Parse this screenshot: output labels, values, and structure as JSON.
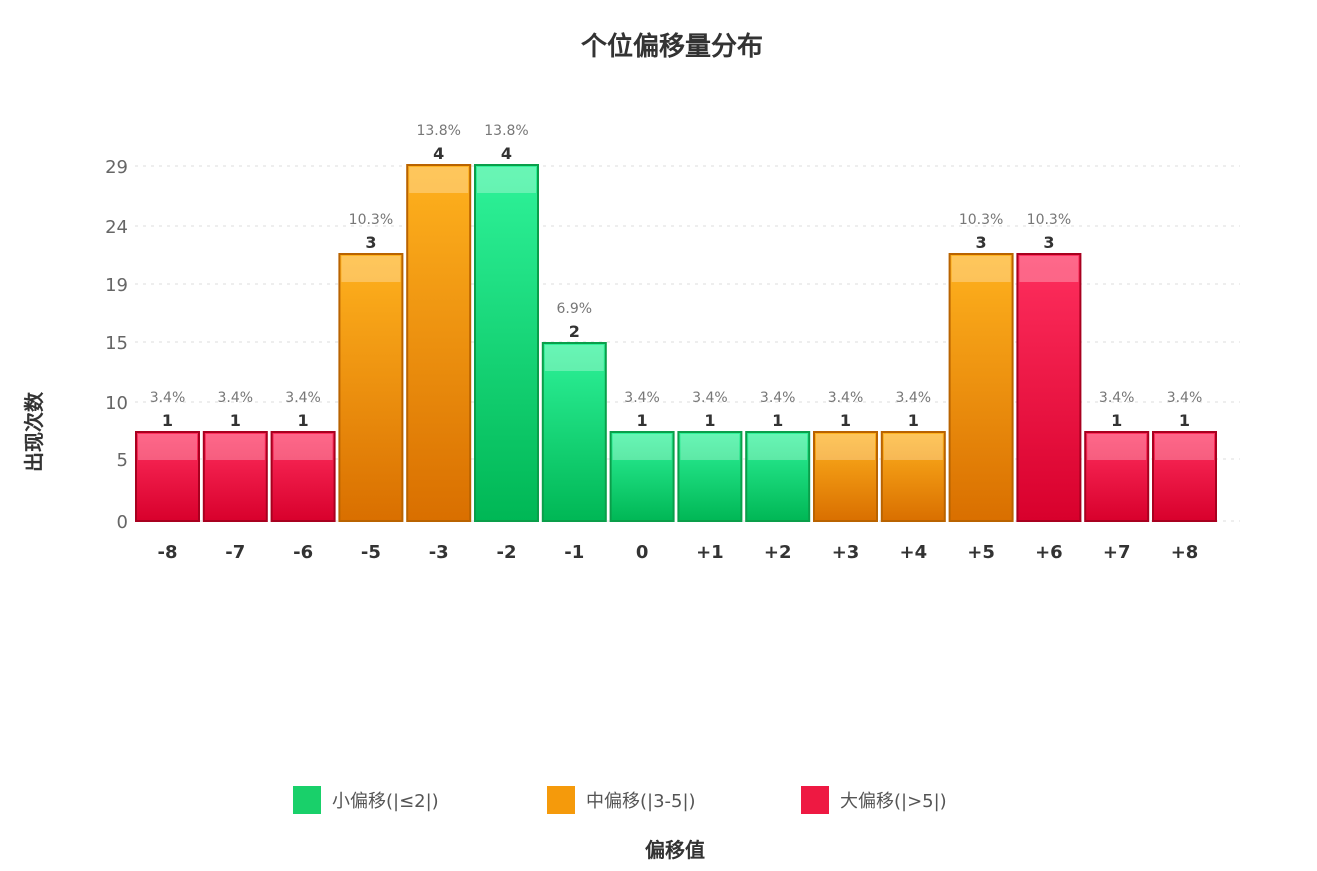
{
  "chart_data": {
    "type": "bar",
    "title": "个位偏移量分布",
    "xlabel": "偏移值",
    "ylabel": "出现次数",
    "categories": [
      "-8",
      "-7",
      "-6",
      "-5",
      "-3",
      "-2",
      "-1",
      "0",
      "+1",
      "+2",
      "+3",
      "+4",
      "+5",
      "+6",
      "+7",
      "+8"
    ],
    "values": [
      1,
      1,
      1,
      3,
      4,
      4,
      2,
      1,
      1,
      1,
      1,
      1,
      3,
      3,
      1,
      1
    ],
    "percent_labels": [
      "3.4%",
      "3.4%",
      "3.4%",
      "10.3%",
      "13.8%",
      "13.8%",
      "6.9%",
      "3.4%",
      "3.4%",
      "3.4%",
      "3.4%",
      "3.4%",
      "10.3%",
      "10.3%",
      "3.4%",
      "3.4%"
    ],
    "bar_groups": [
      "large",
      "large",
      "large",
      "medium",
      "medium",
      "small",
      "small",
      "small",
      "small",
      "small",
      "medium",
      "medium",
      "medium",
      "large",
      "large",
      "large"
    ],
    "yticks": [
      "0",
      "5",
      "10",
      "15",
      "19",
      "24",
      "29"
    ],
    "ylim": [
      0,
      29
    ],
    "grid": true,
    "legend_position": "bottom-center",
    "legend": [
      {
        "key": "small",
        "label": "小偏移(|≤2|)",
        "color": "#19d06a"
      },
      {
        "key": "medium",
        "label": "中偏移(|3-5|)",
        "color": "#f59a0b"
      },
      {
        "key": "large",
        "label": "大偏移(|>5|)",
        "color": "#ee1942"
      }
    ]
  }
}
